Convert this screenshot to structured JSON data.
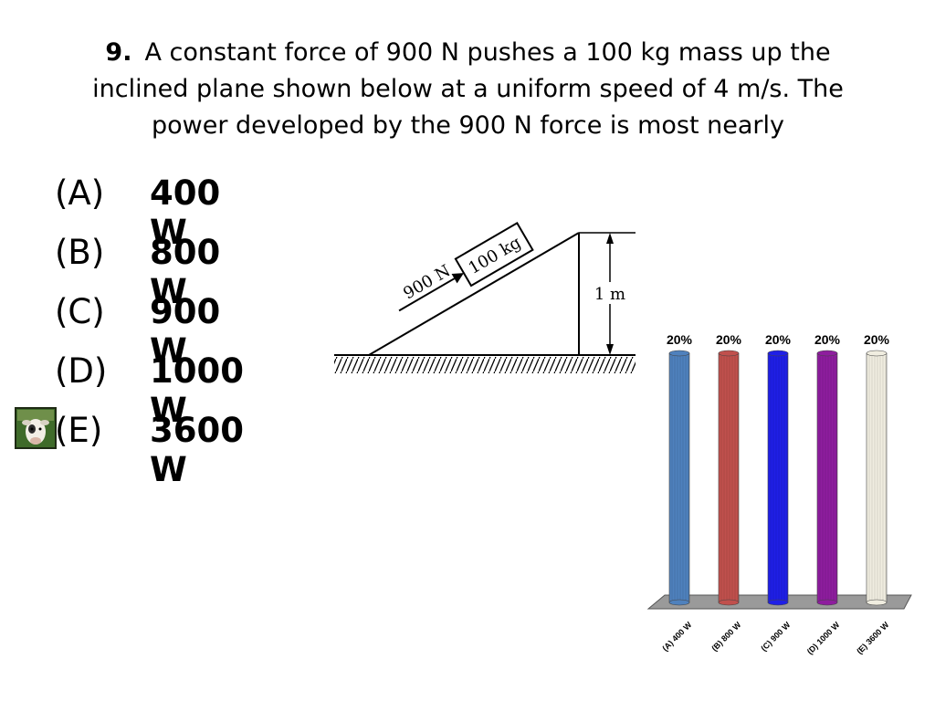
{
  "question": {
    "number": "9.",
    "text": "A constant force of 900 N pushes a 100 kg mass up the inclined plane shown below at a uniform speed of 4 m/s.  The power developed by the 900 N force is most nearly"
  },
  "choices": [
    {
      "letter": "(A)",
      "value": "400 W"
    },
    {
      "letter": "(B)",
      "value": "800 W"
    },
    {
      "letter": "(C)",
      "value": "900 W"
    },
    {
      "letter": "(D)",
      "value": "1000 W"
    },
    {
      "letter": "(E)",
      "value": "3600 W"
    }
  ],
  "diagram": {
    "force_label": "900 N",
    "mass_label": "100 kg",
    "height_label": "1 m"
  },
  "chart_data": {
    "type": "bar",
    "categories": [
      "(A) 400 W",
      "(B) 800 W",
      "(C) 900 W",
      "(D) 1000 W",
      "(E) 3600 W"
    ],
    "values": [
      20,
      20,
      20,
      20,
      20
    ],
    "value_labels": [
      "20%",
      "20%",
      "20%",
      "20%",
      "20%"
    ],
    "colors": [
      "#4f81bd",
      "#c0504d",
      "#1f1fe6",
      "#8e1d9e",
      "#f0ede0"
    ],
    "ylim": [
      0,
      20
    ],
    "grid": false,
    "title": "",
    "xlabel": "",
    "ylabel": ""
  },
  "icons": {
    "marker": "cow-icon"
  }
}
